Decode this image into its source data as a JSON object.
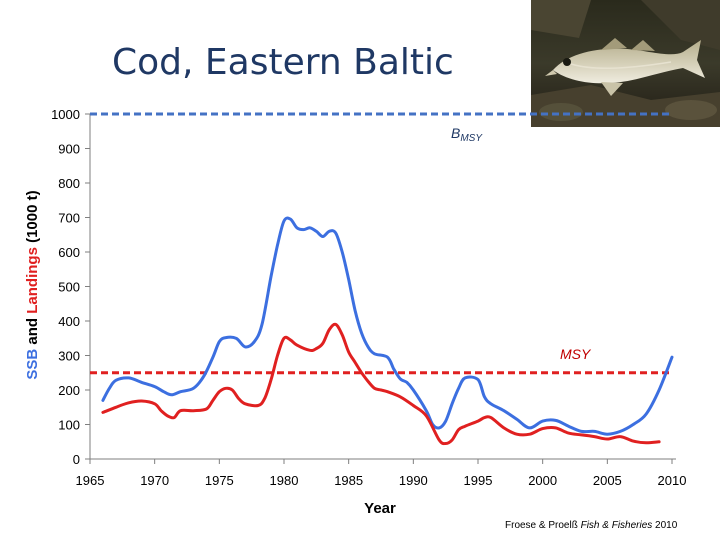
{
  "slide": {
    "title": "Cod, Eastern Baltic",
    "credit_prefix": "Froese & Proelß ",
    "credit_journal": "Fish & Fisheries",
    "credit_year": " 2010"
  },
  "photo": {
    "subject": "cod-fish-photo"
  },
  "chart_data": {
    "type": "line",
    "xlabel": "Year",
    "ylabel_parts": [
      "SSB",
      " and ",
      "Landings",
      " (1000 t)"
    ],
    "xlim": [
      1965,
      2010
    ],
    "ylim": [
      0,
      1000
    ],
    "xticks": [
      1965,
      1970,
      1975,
      1980,
      1985,
      1990,
      1995,
      2000,
      2005,
      2010
    ],
    "yticks": [
      0,
      100,
      200,
      300,
      400,
      500,
      600,
      700,
      800,
      900,
      1000
    ],
    "grid": false,
    "reference_lines": [
      {
        "label": "B",
        "label_sub": "MSY",
        "value": 1000,
        "color": "#4472c4"
      },
      {
        "label": "MSY",
        "label_sub": "",
        "value": 250,
        "color": "#e02020"
      }
    ],
    "series": [
      {
        "color": "#3c6fe0",
        "x": [
          1966,
          1966.5,
          1967,
          1968,
          1969,
          1970,
          1970.7,
          1971.3,
          1972,
          1973,
          1973.8,
          1974.5,
          1975,
          1975.5,
          1976.3,
          1977,
          1977.7,
          1978.3,
          1979,
          1979.5,
          1980,
          1980.5,
          1981,
          1981.5,
          1982,
          1982.5,
          1983,
          1983.5,
          1984,
          1984.5,
          1985,
          1985.5,
          1986,
          1986.5,
          1987,
          1988,
          1988.5,
          1989,
          1989.5,
          1990,
          1991,
          1991.5,
          1992,
          1992.5,
          1993,
          1993.5,
          1994,
          1995,
          1995.5,
          1996,
          1997,
          1998,
          1999,
          2000,
          2001,
          2002,
          2003,
          2004,
          2005,
          2006,
          2007,
          2008,
          2009,
          2010
        ],
        "values": [
          170,
          205,
          228,
          235,
          222,
          210,
          195,
          186,
          195,
          205,
          240,
          295,
          340,
          352,
          350,
          325,
          340,
          390,
          530,
          620,
          690,
          695,
          670,
          665,
          670,
          660,
          645,
          660,
          655,
          600,
          520,
          430,
          365,
          325,
          305,
          295,
          260,
          232,
          222,
          200,
          140,
          100,
          90,
          110,
          160,
          205,
          235,
          230,
          180,
          160,
          140,
          115,
          90,
          110,
          112,
          95,
          80,
          80,
          72,
          80,
          100,
          130,
          200,
          295
        ]
      },
      {
        "color": "#e02020",
        "x": [
          1966,
          1967,
          1968,
          1969,
          1970,
          1970.5,
          1971,
          1971.5,
          1972,
          1973,
          1974,
          1974.5,
          1975,
          1975.5,
          1976,
          1976.5,
          1977,
          1978,
          1978.5,
          1979,
          1979.5,
          1980,
          1980.5,
          1981,
          1982,
          1982.5,
          1983,
          1983.5,
          1984,
          1984.5,
          1985,
          1985.5,
          1986,
          1986.5,
          1987,
          1987.5,
          1988,
          1989,
          1990,
          1991,
          1992,
          1992.5,
          1993,
          1993.5,
          1994,
          1995,
          1995.5,
          1996,
          1997,
          1998,
          1999,
          2000,
          2001,
          2002,
          2003,
          2004,
          2005,
          2006,
          2007,
          2008,
          2009
        ],
        "values": [
          135,
          150,
          163,
          168,
          160,
          140,
          125,
          120,
          140,
          140,
          145,
          170,
          195,
          205,
          200,
          175,
          160,
          155,
          175,
          230,
          300,
          350,
          345,
          330,
          315,
          320,
          335,
          375,
          390,
          360,
          310,
          280,
          250,
          225,
          205,
          200,
          195,
          180,
          155,
          125,
          55,
          45,
          55,
          85,
          95,
          110,
          120,
          120,
          90,
          72,
          72,
          88,
          90,
          75,
          70,
          65,
          58,
          65,
          52,
          47,
          50
        ]
      }
    ]
  }
}
